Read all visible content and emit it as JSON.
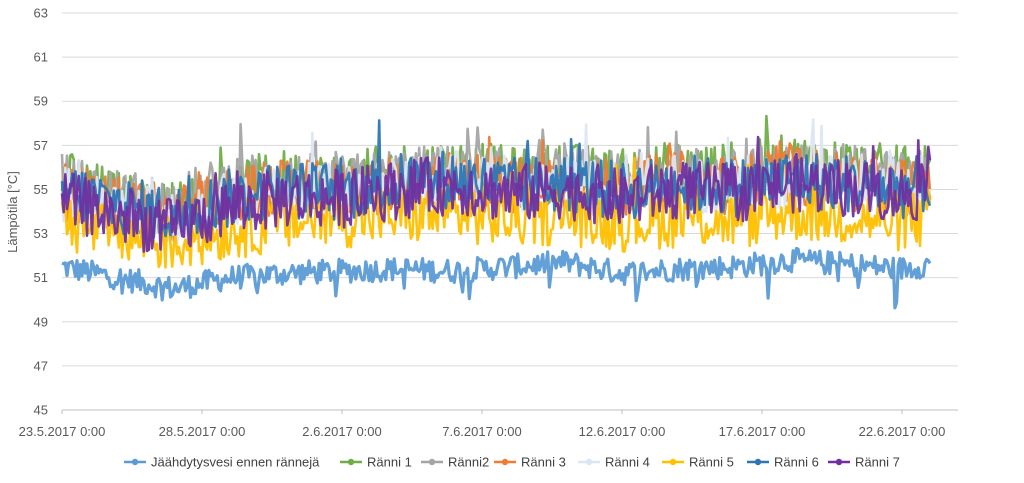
{
  "chart_data": {
    "type": "line",
    "title": "",
    "xlabel": "",
    "ylabel": "Lämpötila [°C]",
    "ylim": [
      45,
      63
    ],
    "yticks": [
      45,
      47,
      49,
      51,
      53,
      55,
      57,
      59,
      61,
      63
    ],
    "xlim": [
      "23.5.2017 0:00",
      "24.6.2017 0:00"
    ],
    "xticks": [
      "23.5.2017 0:00",
      "28.5.2017 0:00",
      "2.6.2017 0:00",
      "7.6.2017 0:00",
      "12.6.2017 0:00",
      "17.6.2017 0:00",
      "22.6.2017 0:00"
    ],
    "grid": "horizontal",
    "legend": "bottom",
    "x": [
      "23.5.2017 0:00",
      "25.5.2017 0:00",
      "27.5.2017 0:00",
      "29.5.2017 0:00",
      "31.5.2017 0:00",
      "2.6.2017 0:00",
      "4.6.2017 0:00",
      "6.6.2017 0:00",
      "8.6.2017 0:00",
      "10.6.2017 0:00",
      "12.6.2017 0:00",
      "14.6.2017 0:00",
      "16.6.2017 0:00",
      "18.6.2017 0:00",
      "20.6.2017 0:00",
      "22.6.2017 0:00",
      "23.6.2017 0:00"
    ],
    "series": [
      {
        "name": "Jäähdytysvesi ennen rännejä",
        "color": "#5B9BD5",
        "values": [
          51.5,
          51.0,
          50.5,
          51.0,
          51.2,
          51.3,
          51.4,
          51.3,
          51.5,
          51.7,
          51.2,
          51.4,
          51.5,
          51.8,
          51.6,
          51.4,
          51.6
        ]
      },
      {
        "name": "Ränni 1",
        "color": "#70AD47",
        "values": [
          55.5,
          54.5,
          54.0,
          55.0,
          55.5,
          55.3,
          55.8,
          56.0,
          55.6,
          55.8,
          55.5,
          55.9,
          55.7,
          56.2,
          56.0,
          55.6,
          55.8
        ]
      },
      {
        "name": "Ränni2",
        "color": "#A5A5A5",
        "values": [
          55.3,
          54.6,
          54.3,
          55.3,
          55.4,
          55.2,
          55.6,
          55.7,
          55.5,
          55.6,
          55.4,
          55.7,
          55.5,
          55.8,
          55.7,
          55.4,
          55.6
        ]
      },
      {
        "name": "Ränni 3",
        "color": "#ED7D31",
        "values": [
          55.0,
          54.2,
          53.8,
          54.6,
          55.0,
          54.9,
          55.3,
          55.5,
          55.1,
          55.3,
          55.0,
          55.4,
          55.2,
          55.6,
          55.4,
          55.1,
          55.4
        ]
      },
      {
        "name": "Ränni 4",
        "color": "#DCE6F2",
        "values": [
          54.8,
          54.1,
          53.7,
          54.5,
          54.9,
          54.8,
          55.2,
          55.4,
          55.0,
          55.2,
          54.9,
          55.3,
          55.1,
          55.5,
          55.3,
          55.0,
          55.3
        ]
      },
      {
        "name": "Ränni 5",
        "color": "#FFC000",
        "values": [
          53.5,
          53.0,
          52.5,
          53.2,
          53.5,
          53.7,
          53.8,
          53.9,
          53.7,
          53.8,
          53.5,
          53.7,
          53.6,
          54.0,
          53.8,
          53.5,
          53.7
        ]
      },
      {
        "name": "Ränni 6",
        "color": "#2E75B6",
        "values": [
          55.0,
          54.3,
          53.8,
          54.6,
          55.0,
          54.9,
          55.3,
          55.5,
          55.1,
          55.3,
          54.9,
          55.3,
          55.1,
          55.5,
          55.3,
          55.0,
          55.3
        ]
      },
      {
        "name": "Ränni 7",
        "color": "#7030A0",
        "values": [
          54.5,
          53.8,
          53.2,
          54.2,
          54.6,
          54.6,
          55.0,
          55.2,
          54.8,
          55.0,
          54.6,
          55.0,
          54.8,
          55.3,
          55.1,
          54.8,
          55.0
        ]
      }
    ]
  }
}
